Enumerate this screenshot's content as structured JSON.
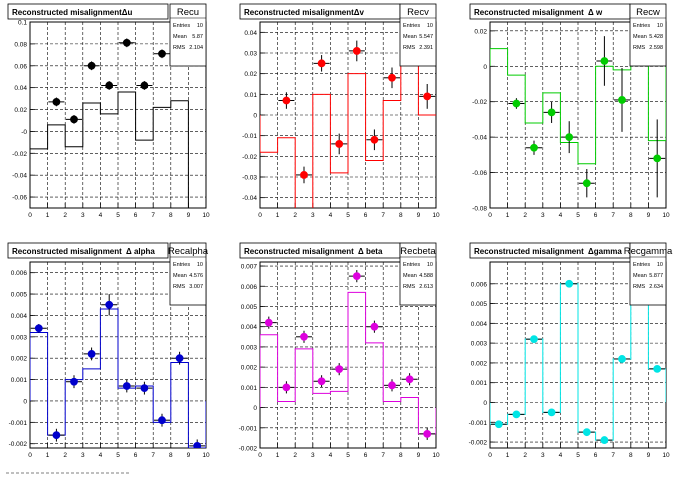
{
  "chart_data": [
    {
      "type": "scatter",
      "title": "Reconstructed misalignmentΔu",
      "stats": {
        "name": "Recu",
        "entries_label": "Entries",
        "entries": "10",
        "mean_label": "Mean",
        "mean": "5.87",
        "rms_label": "RMS",
        "rms": "2.104"
      },
      "color": "#000000",
      "xlim": [
        0,
        10
      ],
      "ylim": [
        -0.07,
        0.1
      ],
      "xticks": [
        0,
        1,
        2,
        3,
        4,
        5,
        6,
        7,
        8,
        9,
        10
      ],
      "yticks": [
        -0.06,
        -0.04,
        -0.02,
        0,
        0.02,
        0.04,
        0.06,
        0.08,
        0.1
      ],
      "ytick_labels": [
        "-0.06",
        "-0.04",
        "-0.02",
        "-0",
        "0.02",
        "0.04",
        "0.06",
        "0.08",
        "0.1"
      ],
      "x": [
        1.5,
        2.5,
        3.5,
        4.5,
        5.5,
        6.5,
        7.5,
        8.5
      ],
      "y": [
        0.027,
        0.011,
        0.06,
        0.042,
        0.081,
        0.042,
        0.071,
        0.089
      ],
      "yerr": [
        0.004,
        0.004,
        0.004,
        0.004,
        0.004,
        0.004,
        0.004,
        0.004
      ],
      "hist": [
        -0.016,
        0.006,
        -0.014,
        0.026,
        0.016,
        0.036,
        -0.008,
        0.022,
        0.028,
        -0.07
      ]
    },
    {
      "type": "scatter",
      "title": "Reconstructed misalignmentΔv",
      "stats": {
        "name": "Recv",
        "entries_label": "Entries",
        "entries": "10",
        "mean_label": "Mean",
        "mean": "5.547",
        "rms_label": "RMS",
        "rms": "2.391"
      },
      "color": "#ff0000",
      "xlim": [
        0,
        10
      ],
      "ylim": [
        -0.045,
        0.045
      ],
      "xticks": [
        0,
        1,
        2,
        3,
        4,
        5,
        6,
        7,
        8,
        9,
        10
      ],
      "yticks": [
        -0.04,
        -0.03,
        -0.02,
        -0.01,
        0,
        0.01,
        0.02,
        0.03,
        0.04
      ],
      "ytick_labels": [
        "-0.04",
        "-0.03",
        "-0.02",
        "-0.01",
        "0",
        "0.01",
        "0.02",
        "0.03",
        "0.04"
      ],
      "x": [
        1.5,
        2.5,
        3.5,
        4.5,
        5.5,
        6.5,
        7.5,
        8.5,
        9.5
      ],
      "y": [
        0.007,
        -0.029,
        0.025,
        -0.014,
        0.031,
        -0.012,
        0.018,
        0.035,
        0.009
      ],
      "yerr": [
        0.004,
        0.004,
        0.004,
        0.005,
        0.005,
        0.005,
        0.005,
        0.005,
        0.006
      ],
      "hist": [
        -0.018,
        -0.011,
        -0.05,
        0.01,
        -0.028,
        0.02,
        -0.022,
        0.007,
        0.026,
        0.0
      ]
    },
    {
      "type": "scatter",
      "title": "Reconstructed misalignment",
      "title2": "Δ w",
      "stats": {
        "name": "Recw",
        "entries_label": "Entries",
        "entries": "10",
        "mean_label": "Mean",
        "mean": "5.428",
        "rms_label": "RMS",
        "rms": "2.598"
      },
      "color": "#00cc00",
      "xlim": [
        0,
        10
      ],
      "ylim": [
        -0.08,
        0.025
      ],
      "xticks": [
        0,
        1,
        2,
        3,
        4,
        5,
        6,
        7,
        8,
        9,
        10
      ],
      "yticks": [
        -0.08,
        -0.06,
        -0.04,
        -0.02,
        0,
        0.02
      ],
      "ytick_labels": [
        "-0.08",
        "-0.06",
        "-0.04",
        "-0.02",
        "0",
        "0.02"
      ],
      "x": [
        1.5,
        2.5,
        3.5,
        4.5,
        5.5,
        6.5,
        7.5,
        8.5,
        9.5
      ],
      "y": [
        -0.021,
        -0.046,
        -0.026,
        -0.04,
        -0.066,
        0.003,
        -0.019,
        0.015,
        -0.052
      ],
      "yerr": [
        0.003,
        0.004,
        0.006,
        0.009,
        0.008,
        0.014,
        0.018,
        0.014,
        0.022
      ],
      "hist": [
        0.01,
        -0.005,
        -0.032,
        -0.015,
        -0.043,
        -0.055,
        0.0,
        -0.002,
        0.018,
        -0.042
      ]
    },
    {
      "type": "scatter",
      "title": "Reconstructed misalignment",
      "title2": "Δ alpha",
      "stats": {
        "name": "Recalpha",
        "entries_label": "Entries",
        "entries": "10",
        "mean_label": "Mean",
        "mean": "4.576",
        "rms_label": "RMS",
        "rms": "3.007"
      },
      "color": "#0000cc",
      "xlim": [
        0,
        10
      ],
      "ylim": [
        -0.0022,
        0.0065
      ],
      "xticks": [
        0,
        1,
        2,
        3,
        4,
        5,
        6,
        7,
        8,
        9,
        10
      ],
      "yticks": [
        -0.002,
        -0.001,
        0,
        0.001,
        0.002,
        0.003,
        0.004,
        0.005,
        0.006
      ],
      "ytick_labels": [
        "-0.002",
        "-0.001",
        "0",
        "0.001",
        "0.002",
        "0.003",
        "0.004",
        "0.005",
        "0.006"
      ],
      "x": [
        0.5,
        1.5,
        2.5,
        3.5,
        4.5,
        5.5,
        6.5,
        7.5,
        8.5,
        9.5
      ],
      "y": [
        0.0034,
        -0.0016,
        0.0009,
        0.0022,
        0.0045,
        0.0007,
        0.0006,
        -0.0009,
        0.002,
        -0.0021
      ],
      "yerr": [
        0.0002,
        0.0003,
        0.0003,
        0.0003,
        0.0005,
        0.0003,
        0.0003,
        0.0003,
        0.0003,
        0.0003
      ],
      "hist": [
        0.0032,
        -0.0016,
        0.001,
        0.0015,
        0.0043,
        0.0006,
        0.0007,
        -0.001,
        0.0018,
        -0.0022
      ]
    },
    {
      "type": "scatter",
      "title": "Reconstructed misalignment",
      "title2": "Δ beta",
      "stats": {
        "name": "Recbeta",
        "entries_label": "Entries",
        "entries": "10",
        "mean_label": "Mean",
        "mean": "4.588",
        "rms_label": "RMS",
        "rms": "2.613"
      },
      "color": "#dd00dd",
      "xlim": [
        0,
        10
      ],
      "ylim": [
        -0.002,
        0.0072
      ],
      "xticks": [
        0,
        1,
        2,
        3,
        4,
        5,
        6,
        7,
        8,
        9,
        10
      ],
      "yticks": [
        -0.002,
        -0.001,
        0,
        0.001,
        0.002,
        0.003,
        0.004,
        0.005,
        0.006,
        0.007
      ],
      "ytick_labels": [
        "-0.002",
        "-0.001",
        "0",
        "0.001",
        "0.002",
        "0.003",
        "0.004",
        "0.005",
        "0.006",
        "0.007"
      ],
      "x": [
        0.5,
        1.5,
        2.5,
        3.5,
        4.5,
        5.5,
        6.5,
        7.5,
        8.5,
        9.5
      ],
      "y": [
        0.0042,
        0.001,
        0.0035,
        0.0013,
        0.0019,
        0.0065,
        0.004,
        0.0011,
        0.0014,
        -0.0013
      ],
      "yerr": [
        0.0003,
        0.0003,
        0.0003,
        0.0003,
        0.0003,
        0.0003,
        0.0003,
        0.0003,
        0.0003,
        0.0003
      ],
      "hist": [
        0.0036,
        0.0003,
        0.0029,
        0.0007,
        0.0008,
        0.0057,
        0.0032,
        0.0003,
        0.0005,
        -0.0013
      ]
    },
    {
      "type": "scatter",
      "title": "Reconstructed misalignment",
      "title2": "Δgamma",
      "stats": {
        "name": "Recgamma",
        "entries_label": "Entries",
        "entries": "10",
        "mean_label": "Mean",
        "mean": "5.877",
        "rms_label": "RMS",
        "rms": "2.634"
      },
      "color": "#00e5e5",
      "xlim": [
        0,
        10
      ],
      "ylim": [
        -0.0023,
        0.0071
      ],
      "xticks": [
        0,
        1,
        2,
        3,
        4,
        5,
        6,
        7,
        8,
        9,
        10
      ],
      "yticks": [
        -0.002,
        -0.001,
        0,
        0.001,
        0.002,
        0.003,
        0.004,
        0.005,
        0.006
      ],
      "ytick_labels": [
        "-0.002",
        "-0.001",
        "0",
        "0.001",
        "0.002",
        "0.003",
        "0.004",
        "0.005",
        "0.006"
      ],
      "x": [
        0.5,
        1.5,
        2.5,
        3.5,
        4.5,
        5.5,
        6.5,
        7.5,
        8.5,
        9.5
      ],
      "y": [
        -0.0011,
        -0.0006,
        0.0032,
        -0.0005,
        0.006,
        -0.0015,
        -0.0019,
        0.0022,
        0.0069,
        0.0017
      ],
      "yerr": [
        0.0001,
        0.0001,
        0.0001,
        0.0001,
        0.0001,
        0.0001,
        0.0001,
        0.0001,
        0.0001,
        0.0001
      ],
      "hist": [
        -0.0011,
        -0.0006,
        0.0032,
        -0.0005,
        0.006,
        -0.0015,
        -0.0019,
        0.0022,
        0.0069,
        0.0017
      ]
    }
  ]
}
